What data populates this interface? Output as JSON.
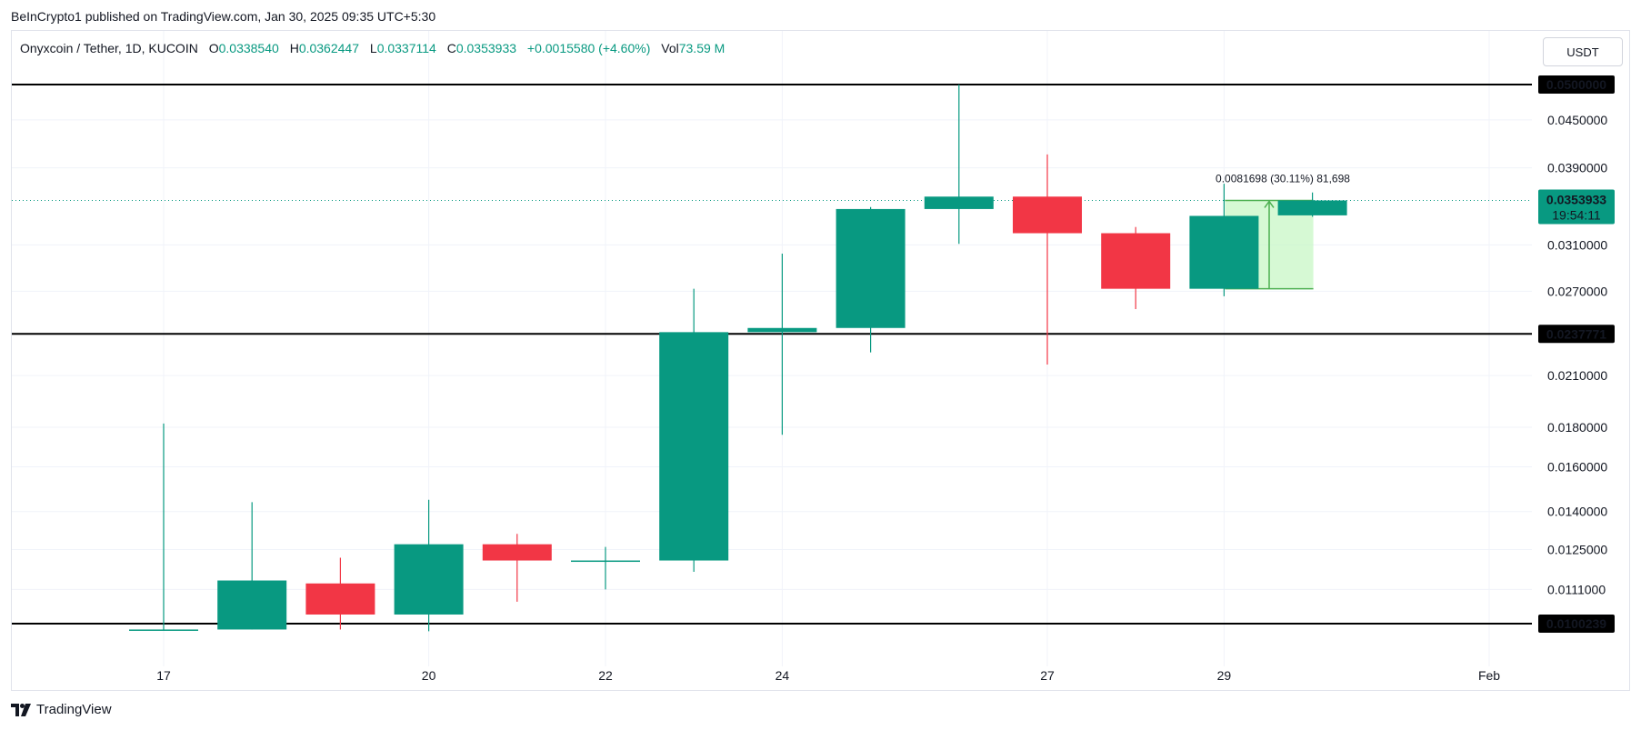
{
  "header": {
    "published": "BeInCrypto1 published on TradingView.com, Jan 30, 2025 09:35 UTC+5:30"
  },
  "legend": {
    "symbol": "Onyxcoin / Tether, 1D, KUCOIN",
    "o_label": "O",
    "o_value": "0.0338540",
    "h_label": "H",
    "h_value": "0.0362447",
    "l_label": "L",
    "l_value": "0.0337114",
    "c_label": "C",
    "c_value": "0.0353933",
    "change": "+0.0015580 (+4.60%)",
    "vol_label": "Vol",
    "vol_value": "73.59 M"
  },
  "currency": "USDT",
  "brand": {
    "name": "TradingView"
  },
  "colors": {
    "up": "#089981",
    "down": "#f23645",
    "level": "#000000",
    "measure": "#4caf50",
    "measure_fill": "#c8f7c5"
  },
  "chart_data": {
    "type": "candlestick",
    "timeframe": "1D",
    "y_scale": "log",
    "y_ticks": [
      "0.0450000",
      "0.0390000",
      "0.0310000",
      "0.0270000",
      "0.0210000",
      "0.0180000",
      "0.0160000",
      "0.0140000",
      "0.0125000",
      "0.0111000"
    ],
    "x_ticks": [
      {
        "label": "17",
        "index": 0
      },
      {
        "label": "20",
        "index": 3
      },
      {
        "label": "22",
        "index": 5
      },
      {
        "label": "24",
        "index": 7
      },
      {
        "label": "27",
        "index": 10
      },
      {
        "label": "29",
        "index": 12
      },
      {
        "label": "Feb",
        "index": 15
      }
    ],
    "candles": [
      {
        "date": "Jan 17",
        "open": 0.00985,
        "high": 0.0182,
        "low": 0.00985,
        "close": 0.00985
      },
      {
        "date": "Jan 18",
        "open": 0.00985,
        "high": 0.0144,
        "low": 0.00985,
        "close": 0.0114
      },
      {
        "date": "Jan 19",
        "open": 0.0113,
        "high": 0.0122,
        "low": 0.00985,
        "close": 0.0103
      },
      {
        "date": "Jan 20",
        "open": 0.0103,
        "high": 0.0145,
        "low": 0.0098,
        "close": 0.0127
      },
      {
        "date": "Jan 21",
        "open": 0.0127,
        "high": 0.0131,
        "low": 0.0107,
        "close": 0.0121
      },
      {
        "date": "Jan 22",
        "open": 0.0121,
        "high": 0.0126,
        "low": 0.0111,
        "close": 0.0121
      },
      {
        "date": "Jan 23",
        "open": 0.0121,
        "high": 0.0272,
        "low": 0.0117,
        "close": 0.0239
      },
      {
        "date": "Jan 24",
        "open": 0.0239,
        "high": 0.0302,
        "low": 0.0176,
        "close": 0.0242
      },
      {
        "date": "Jan 25",
        "open": 0.0242,
        "high": 0.0347,
        "low": 0.0225,
        "close": 0.0345
      },
      {
        "date": "Jan 26",
        "open": 0.0345,
        "high": 0.05,
        "low": 0.0311,
        "close": 0.0358
      },
      {
        "date": "Jan 27",
        "open": 0.0358,
        "high": 0.0406,
        "low": 0.0217,
        "close": 0.0321
      },
      {
        "date": "Jan 28",
        "open": 0.0321,
        "high": 0.0327,
        "low": 0.0256,
        "close": 0.0272
      },
      {
        "date": "Jan 29",
        "open": 0.0272,
        "high": 0.0372,
        "low": 0.0266,
        "close": 0.0338
      },
      {
        "date": "Jan 30",
        "open": 0.033854,
        "high": 0.0362447,
        "low": 0.0337114,
        "close": 0.0353933
      }
    ],
    "levels": [
      {
        "value": 0.05,
        "label": "0.0500000"
      },
      {
        "value": 0.0237771,
        "label": "0.0237771"
      },
      {
        "value": 0.0100239,
        "label": "0.0100239"
      }
    ],
    "current_price": {
      "value": 0.0353933,
      "label": "0.0353933",
      "countdown": "19:54:11"
    },
    "measure": {
      "from_index": 12,
      "to_index": 13,
      "from_price": 0.0272,
      "to_price": 0.0353933,
      "label": "0.0081698 (30.11%) 81,698"
    }
  }
}
